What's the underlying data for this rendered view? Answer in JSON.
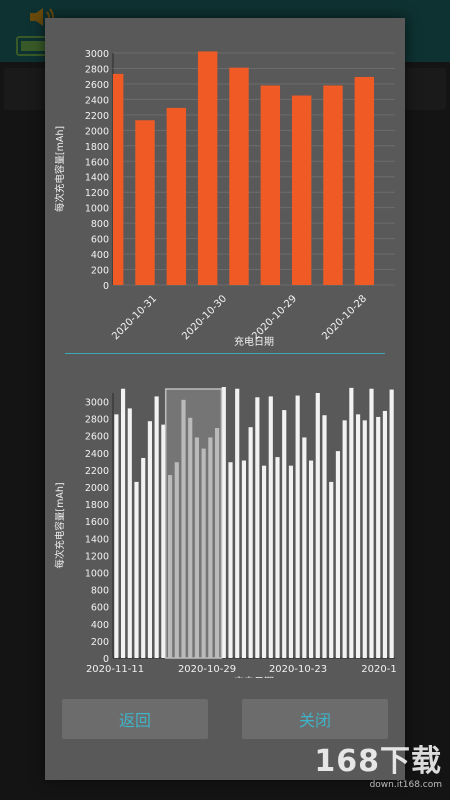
{
  "dialog": {
    "back_button": "返回",
    "close_button": "关闭"
  },
  "watermark": {
    "brand": "168下载",
    "url": "down.it168.com"
  },
  "colors": {
    "bar_top": "#f05a25",
    "bar_bottom": "#f2f2f2",
    "divider": "#3aa7b5",
    "accent_text": "#3fb3c8"
  },
  "chart_data": [
    {
      "type": "bar",
      "ylabel": "每次充电容量[mAh]",
      "xlabel": "充电日期",
      "ylim": [
        0,
        3000
      ],
      "yticks": [
        0,
        200,
        400,
        600,
        800,
        1000,
        1200,
        1400,
        1600,
        1800,
        2000,
        2200,
        2400,
        2600,
        2800,
        3000
      ],
      "tick_labels": [
        "2020-10-31",
        "2020-10-30",
        "2020-10-29",
        "2020-10-28"
      ],
      "values": [
        2730,
        2130,
        2290,
        3020,
        2810,
        2580,
        2450,
        2580,
        2690
      ],
      "grid": true
    },
    {
      "type": "bar",
      "ylabel": "每次充电容量[mAh]",
      "xlabel": "充电日期",
      "ylim": [
        0,
        3100
      ],
      "yticks": [
        0,
        200,
        400,
        600,
        800,
        1000,
        1200,
        1400,
        1600,
        1800,
        2000,
        2200,
        2400,
        2600,
        2800,
        3000
      ],
      "tick_labels": [
        "2020-11-11",
        "2020-10-29",
        "2020-10-23",
        "2020-1"
      ],
      "values": [
        2850,
        3150,
        2920,
        2060,
        2340,
        2770,
        3060,
        2730,
        2140,
        2290,
        3020,
        2810,
        2580,
        2450,
        2580,
        2690,
        3170,
        2290,
        3150,
        2310,
        2700,
        3050,
        2250,
        3060,
        2350,
        2900,
        2250,
        3070,
        2580,
        2310,
        3100,
        2840,
        2060,
        2420,
        2780,
        3160,
        2850,
        2780,
        3150,
        2820,
        2890,
        3140
      ],
      "selected_range": [
        8,
        15
      ],
      "grid": false
    }
  ]
}
